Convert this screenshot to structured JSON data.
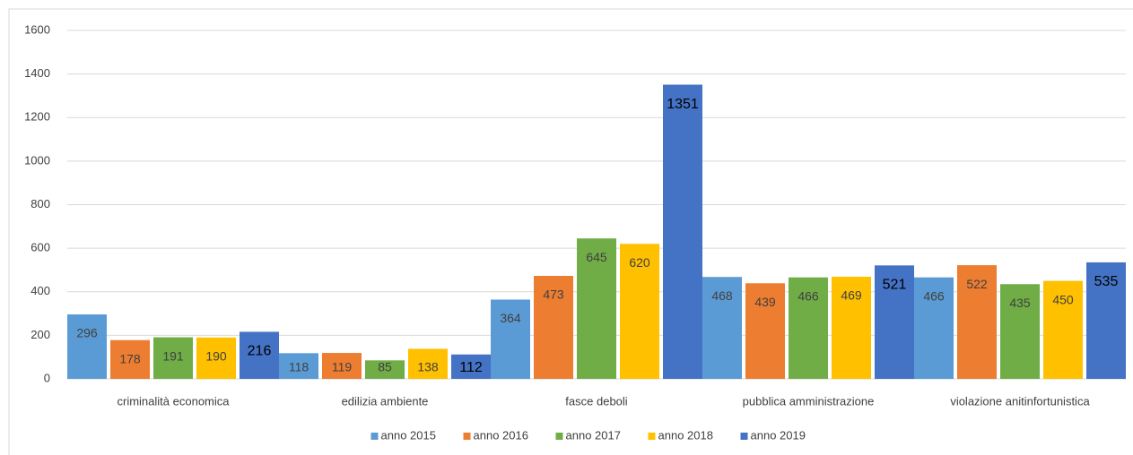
{
  "chart_data": {
    "type": "bar",
    "categories": [
      "criminalità economica",
      "edilizia ambiente",
      "fasce deboli",
      "pubblica amministrazione",
      "violazione anitinfortunistica"
    ],
    "series": [
      {
        "name": "anno 2015",
        "color": "#5b9bd5",
        "values": [
          296,
          118,
          364,
          468,
          466
        ]
      },
      {
        "name": "anno 2016",
        "color": "#ed7d31",
        "values": [
          178,
          119,
          473,
          439,
          522
        ]
      },
      {
        "name": "anno 2017",
        "color": "#70ad47",
        "values": [
          191,
          85,
          645,
          466,
          435
        ]
      },
      {
        "name": "anno 2018",
        "color": "#ffc000",
        "values": [
          190,
          138,
          620,
          469,
          450
        ]
      },
      {
        "name": "anno 2019",
        "color": "#4472c4",
        "values": [
          216,
          112,
          1351,
          521,
          535
        ]
      }
    ],
    "ylim": [
      0,
      1600
    ],
    "yticks": [
      0,
      200,
      400,
      600,
      800,
      1000,
      1200,
      1400,
      1600
    ],
    "grid": true,
    "legend": "bottom"
  }
}
